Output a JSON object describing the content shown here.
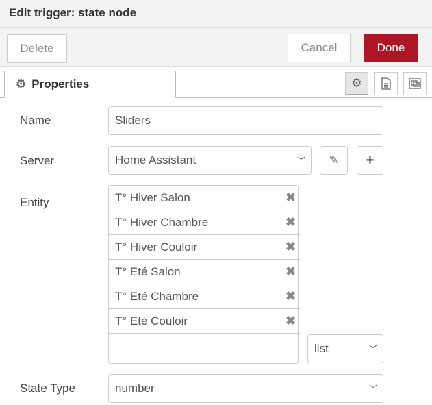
{
  "header": {
    "title": "Edit trigger: state node"
  },
  "toolbar": {
    "delete_label": "Delete",
    "cancel_label": "Cancel",
    "done_label": "Done",
    "done_color": "#ad1625"
  },
  "tabs": {
    "properties_label": "Properties",
    "icons": [
      "gear-icon",
      "description-icon",
      "appearance-icon"
    ]
  },
  "form": {
    "name_label": "Name",
    "name_value": "Sliders",
    "server_label": "Server",
    "server_value": "Home Assistant",
    "entity_label": "Entity",
    "entities": [
      "T° Hiver Salon",
      "T° Hiver Chambre",
      "T° Hiver Couloir",
      "T° Eté Salon",
      "T° Eté Chambre",
      "T° Eté Couloir"
    ],
    "entity_input_value": "",
    "entity_mode": "list",
    "state_type_label": "State Type",
    "state_type_value": "number"
  }
}
